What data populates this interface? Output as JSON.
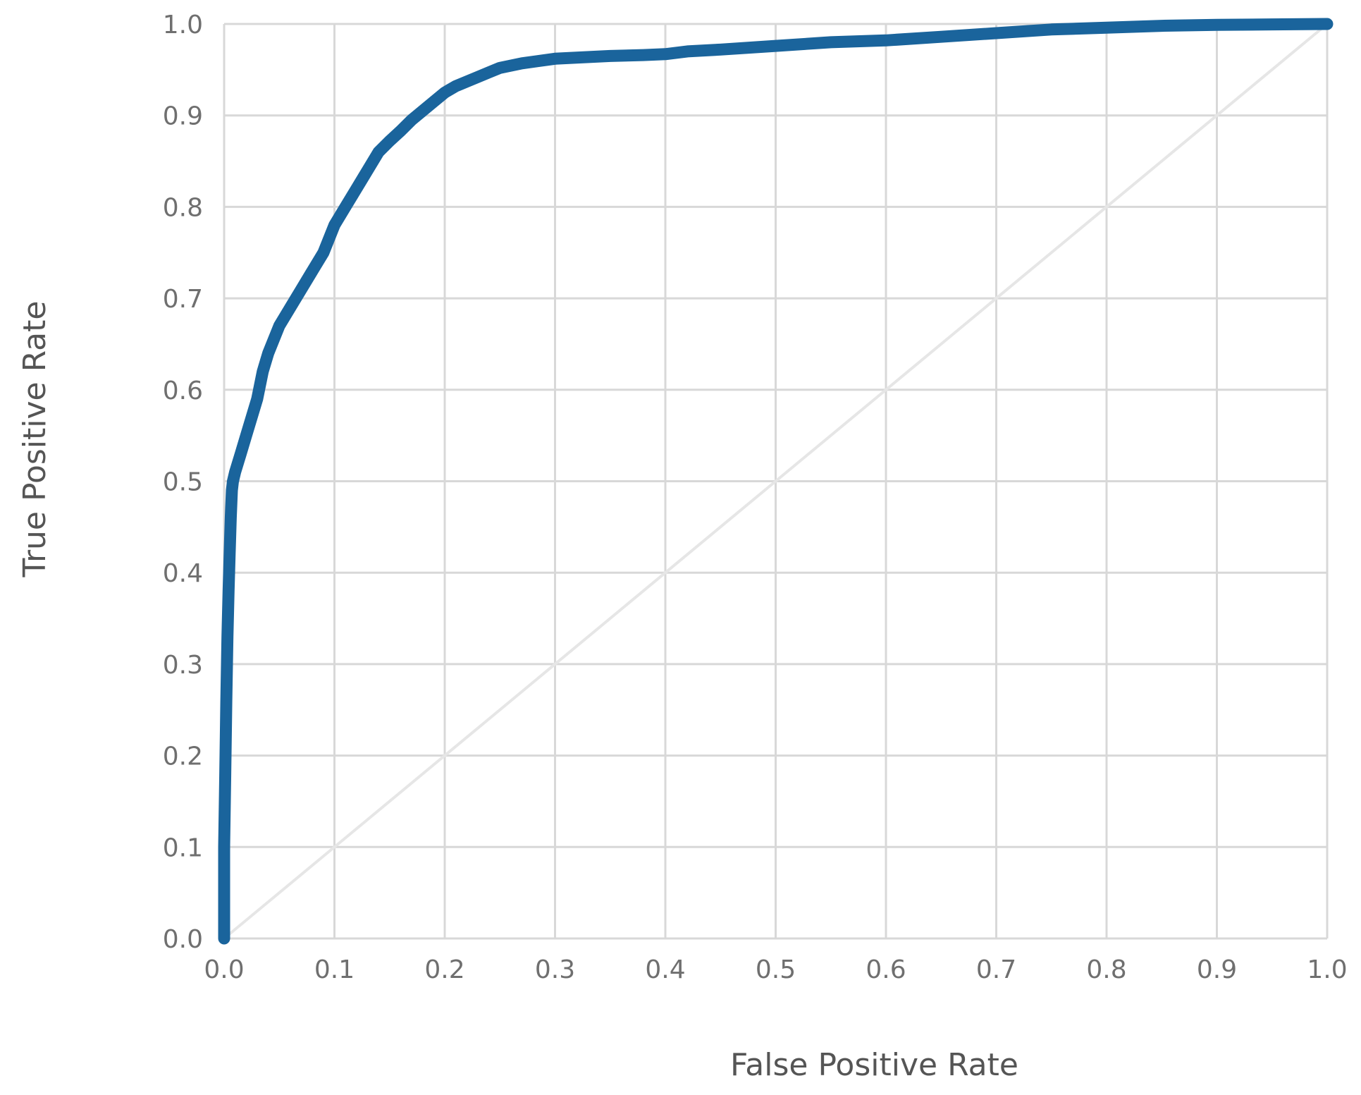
{
  "chart_data": {
    "type": "line",
    "title": "",
    "xlabel": "False Positive Rate",
    "ylabel": "True Positive Rate",
    "xlim": [
      0.0,
      1.0
    ],
    "ylim": [
      0.0,
      1.0
    ],
    "x_ticks": [
      "0.0",
      "0.1",
      "0.2",
      "0.3",
      "0.4",
      "0.5",
      "0.6",
      "0.7",
      "0.8",
      "0.9",
      "1.0"
    ],
    "y_ticks": [
      "0.0",
      "0.1",
      "0.2",
      "0.3",
      "0.4",
      "0.5",
      "0.6",
      "0.7",
      "0.8",
      "0.9",
      "1.0"
    ],
    "grid": true,
    "legend": "none",
    "colors": {
      "curve": "#1a649c",
      "diagonal": "#e6e6e6",
      "grid": "#d8d8d8"
    },
    "series": [
      {
        "x": [
          0.0,
          0.0,
          0.001,
          0.002,
          0.003,
          0.004,
          0.005,
          0.006,
          0.007,
          0.008,
          0.01,
          0.015,
          0.02,
          0.03,
          0.035,
          0.04,
          0.05,
          0.06,
          0.07,
          0.08,
          0.09,
          0.1,
          0.11,
          0.12,
          0.13,
          0.14,
          0.15,
          0.16,
          0.17,
          0.18,
          0.19,
          0.2,
          0.21,
          0.22,
          0.23,
          0.24,
          0.25,
          0.27,
          0.3,
          0.35,
          0.38,
          0.4,
          0.42,
          0.45,
          0.5,
          0.55,
          0.6,
          0.65,
          0.7,
          0.75,
          0.8,
          0.85,
          0.9,
          0.95,
          1.0
        ],
        "y": [
          0.0,
          0.1,
          0.18,
          0.26,
          0.33,
          0.38,
          0.42,
          0.46,
          0.49,
          0.5,
          0.51,
          0.53,
          0.55,
          0.59,
          0.62,
          0.64,
          0.67,
          0.69,
          0.71,
          0.73,
          0.75,
          0.78,
          0.8,
          0.82,
          0.84,
          0.86,
          0.872,
          0.883,
          0.895,
          0.905,
          0.915,
          0.925,
          0.932,
          0.937,
          0.942,
          0.947,
          0.952,
          0.957,
          0.962,
          0.965,
          0.966,
          0.967,
          0.97,
          0.972,
          0.976,
          0.98,
          0.982,
          0.986,
          0.99,
          0.994,
          0.996,
          0.998,
          0.999,
          0.9995,
          1.0
        ]
      }
    ]
  }
}
